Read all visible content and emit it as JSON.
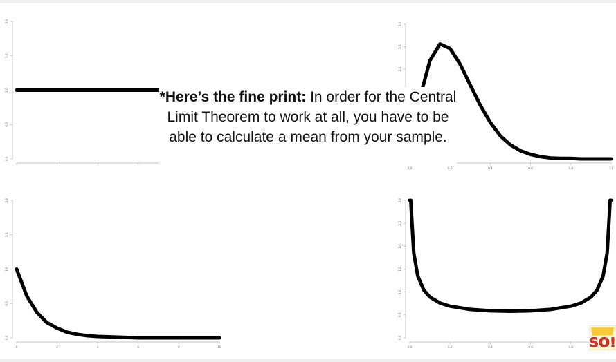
{
  "caption": {
    "bold": "*Here’s the fine print:",
    "text": " In order for the Central Limit Theorem to work at all, you have to be able to calculate a mean from your sample."
  },
  "logo_text": "SO!",
  "colors": {
    "curve": "#000000",
    "axis": "#b0b0b0",
    "logo_red": "#e8302a",
    "logo_yellow": "#f7c21b"
  },
  "chart_data": [
    {
      "type": "line",
      "title": "",
      "xlabel": "",
      "ylabel": "",
      "xlim": [
        0,
        1
      ],
      "ylim": [
        0,
        2
      ],
      "x_ticks": [
        "",
        "",
        "",
        "",
        "",
        ""
      ],
      "y_ticks": [
        "0.0",
        "0.5",
        "1.0",
        "1.5",
        "2.0"
      ],
      "series": [
        {
          "x": [
            0,
            0.2,
            0.4,
            0.6,
            0.8,
            1.0
          ],
          "y": [
            1,
            1,
            1,
            1,
            1,
            1
          ]
        }
      ]
    },
    {
      "type": "line",
      "title": "",
      "xlabel": "",
      "ylabel": "",
      "xlim": [
        0,
        1
      ],
      "ylim": [
        0,
        3
      ],
      "x_ticks": [
        "0.0",
        "0.2",
        "0.4",
        "0.6",
        "0.8",
        "1.0"
      ],
      "y_ticks": [
        "0.0",
        "0.5",
        "1.0",
        "1.5",
        "2.0",
        "2.5",
        "3.0"
      ],
      "series": [
        {
          "x": [
            0.0,
            0.05,
            0.1,
            0.15,
            0.2,
            0.25,
            0.3,
            0.35,
            0.4,
            0.45,
            0.5,
            0.55,
            0.6,
            0.65,
            0.7,
            0.75,
            0.8,
            0.85,
            0.9,
            0.95,
            1.0
          ],
          "y": [
            0.0,
            1.35,
            2.19,
            2.56,
            2.46,
            2.11,
            1.65,
            1.2,
            0.81,
            0.51,
            0.31,
            0.18,
            0.1,
            0.05,
            0.02,
            0.01,
            0.01,
            0.0,
            0.0,
            0.0,
            0.0
          ]
        }
      ]
    },
    {
      "type": "line",
      "title": "",
      "xlabel": "",
      "ylabel": "",
      "xlim": [
        0,
        10
      ],
      "ylim": [
        0,
        2
      ],
      "x_ticks": [
        "0",
        "2",
        "4",
        "6",
        "8",
        "10"
      ],
      "y_ticks": [
        "0.0",
        "0.5",
        "1.0",
        "1.5",
        "2.0"
      ],
      "series": [
        {
          "x": [
            0,
            0.5,
            1,
            1.5,
            2,
            2.5,
            3,
            3.5,
            4,
            5,
            6,
            7,
            8,
            9,
            10
          ],
          "y": [
            1.0,
            0.61,
            0.37,
            0.22,
            0.14,
            0.08,
            0.05,
            0.03,
            0.02,
            0.01,
            0.0,
            0.0,
            0.0,
            0.0,
            0.0
          ]
        }
      ]
    },
    {
      "type": "line",
      "title": "",
      "xlabel": "",
      "ylabel": "",
      "xlim": [
        0,
        1
      ],
      "ylim": [
        0,
        3
      ],
      "x_ticks": [
        "0.0",
        "0.2",
        "0.4",
        "0.6",
        "0.8",
        "1.0"
      ],
      "y_ticks": [
        "0.0",
        "0.5",
        "1.0",
        "1.5",
        "2.0",
        "2.5",
        "3.0"
      ],
      "series": [
        {
          "x": [
            0.0,
            0.005,
            0.01,
            0.02,
            0.04,
            0.07,
            0.1,
            0.15,
            0.2,
            0.3,
            0.4,
            0.5,
            0.6,
            0.7,
            0.8,
            0.85,
            0.9,
            0.93,
            0.96,
            0.98,
            0.99,
            0.995,
            1.0
          ],
          "y": [
            3.0,
            3.0,
            2.6,
            1.85,
            1.35,
            1.04,
            0.89,
            0.76,
            0.69,
            0.62,
            0.59,
            0.58,
            0.59,
            0.62,
            0.69,
            0.76,
            0.89,
            1.04,
            1.35,
            1.85,
            2.6,
            3.0,
            3.0
          ]
        }
      ]
    }
  ]
}
